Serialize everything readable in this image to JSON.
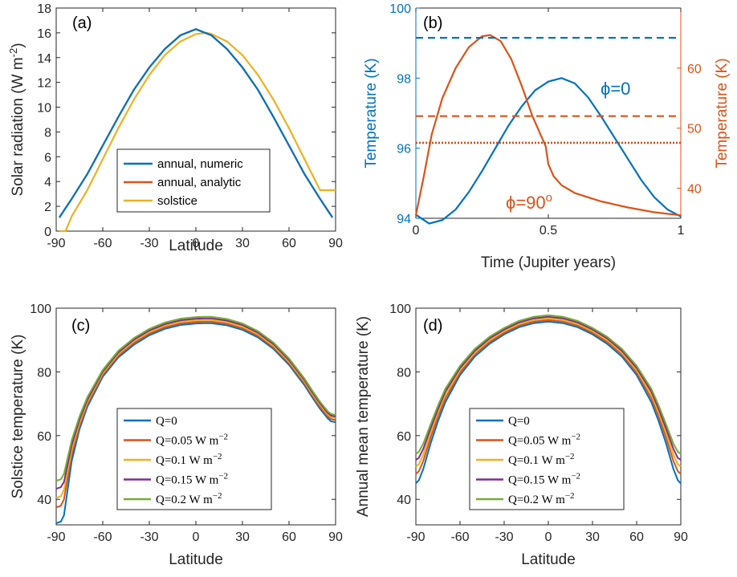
{
  "colors": {
    "blue": "#0072BD",
    "orange": "#D95319",
    "yellow": "#EDB120",
    "purple": "#7E2F8E",
    "green": "#77AC30"
  },
  "chart_data": [
    {
      "panel": "(a)",
      "type": "line",
      "xlabel": "Latitude",
      "ylabel": "Solar radiation (W m-2)",
      "ylabel_main": "Solar radiation (W m",
      "ylabel_sup": "-2",
      "ylabel_end": ")",
      "xlim": [
        -90,
        90
      ],
      "ylim": [
        0,
        18
      ],
      "xticks": [
        "-90",
        "-60",
        "-30",
        "0",
        "30",
        "60",
        "90"
      ],
      "yticks": [
        "0",
        "2",
        "4",
        "6",
        "8",
        "10",
        "12",
        "14",
        "16",
        "18"
      ],
      "legend": "lower-center",
      "series": [
        {
          "name": "annual, numeric",
          "color": "blue",
          "x": [
            -88,
            -80,
            -70,
            -60,
            -50,
            -40,
            -30,
            -20,
            -10,
            0,
            10,
            20,
            30,
            40,
            50,
            60,
            70,
            80,
            88
          ],
          "y": [
            1.1,
            2.6,
            4.6,
            6.9,
            9.2,
            11.4,
            13.2,
            14.7,
            15.8,
            16.3,
            15.8,
            14.7,
            13.2,
            11.4,
            9.2,
            6.9,
            4.6,
            2.6,
            1.1
          ]
        },
        {
          "name": "annual, analytic",
          "color": "orange",
          "x": [
            -88,
            -80,
            -70,
            -60,
            -50,
            -40,
            -30,
            -20,
            -10,
            0,
            10,
            20,
            30,
            40,
            50,
            60,
            70,
            80,
            88
          ],
          "y": [
            1.1,
            2.6,
            4.6,
            6.9,
            9.2,
            11.4,
            13.2,
            14.7,
            15.8,
            16.3,
            15.8,
            14.7,
            13.2,
            11.4,
            9.2,
            6.9,
            4.6,
            2.6,
            1.1
          ]
        },
        {
          "name": "solstice",
          "color": "yellow",
          "x": [
            -88,
            -84,
            -80,
            -70,
            -60,
            -50,
            -40,
            -30,
            -20,
            -10,
            0,
            7,
            10,
            20,
            30,
            40,
            50,
            60,
            70,
            80,
            87,
            90
          ],
          "y": [
            0,
            0,
            1.2,
            3.3,
            5.8,
            8.3,
            10.6,
            12.6,
            14.2,
            15.3,
            15.9,
            16,
            15.9,
            15.3,
            14.2,
            12.6,
            10.6,
            8.3,
            5.8,
            3.3,
            3.3,
            3.3
          ]
        }
      ]
    },
    {
      "panel": "(b)",
      "type": "line",
      "xlabel": "Time (Jupiter years)",
      "ylabel_left": "Temperature (K)",
      "ylabel_right": "Temperature (K)",
      "xlim": [
        0,
        1
      ],
      "ylim_left": [
        94,
        100
      ],
      "ylim_right": [
        35,
        70
      ],
      "xticks": [
        "0",
        "0.5",
        "1"
      ],
      "yticks_left": [
        "94",
        "96",
        "98",
        "100"
      ],
      "yticks_right": [
        "40",
        "50",
        "60"
      ],
      "annotations": [
        {
          "text": "ϕ=0",
          "color": "blue"
        },
        {
          "text": "ϕ=90",
          "sup": "o",
          "color": "orange"
        }
      ],
      "series": [
        {
          "name": "ϕ=0",
          "axis": "left",
          "color": "blue",
          "x": [
            0,
            0.05,
            0.1,
            0.15,
            0.2,
            0.25,
            0.3,
            0.35,
            0.4,
            0.45,
            0.5,
            0.55,
            0.6,
            0.65,
            0.7,
            0.75,
            0.8,
            0.85,
            0.9,
            0.95,
            1.0
          ],
          "y": [
            94.1,
            93.85,
            93.95,
            94.25,
            94.75,
            95.35,
            96.0,
            96.65,
            97.2,
            97.65,
            97.9,
            98.0,
            97.85,
            97.45,
            96.9,
            96.3,
            95.7,
            95.1,
            94.6,
            94.25,
            94.05
          ]
        },
        {
          "name": "ϕ=90",
          "axis": "right",
          "color": "orange",
          "x": [
            0,
            0.03,
            0.06,
            0.1,
            0.15,
            0.2,
            0.25,
            0.28,
            0.32,
            0.36,
            0.4,
            0.44,
            0.47,
            0.49,
            0.5,
            0.52,
            0.55,
            0.6,
            0.7,
            0.8,
            0.9,
            1.0
          ],
          "y": [
            35.5,
            42,
            49,
            55,
            60,
            63.5,
            65.3,
            65.5,
            64.5,
            61.5,
            57,
            52,
            49,
            47,
            44,
            42,
            40.5,
            39.2,
            37.8,
            36.8,
            36,
            35.5
          ]
        },
        {
          "name": "ϕ=0 annual mean",
          "axis": "left",
          "color": "blue",
          "style": "dotted",
          "x": [
            0,
            1
          ],
          "y": [
            96.15,
            96.15
          ]
        },
        {
          "name": "ϕ=90 annual mean",
          "axis": "right",
          "color": "orange",
          "style": "dotted",
          "x": [
            0,
            1
          ],
          "y": [
            47.6,
            47.6
          ]
        },
        {
          "name": "ϕ=0 reference",
          "axis": "left",
          "color": "blue",
          "style": "dashed",
          "x": [
            0,
            1
          ],
          "y": [
            99.15,
            99.15
          ]
        },
        {
          "name": "ϕ=90 reference",
          "axis": "right",
          "color": "orange",
          "style": "dashed",
          "x": [
            0,
            1
          ],
          "y": [
            52,
            52
          ]
        }
      ]
    },
    {
      "panel": "(c)",
      "type": "line",
      "xlabel": "Latitude",
      "ylabel": "Solstice temperature (K)",
      "xlim": [
        -90,
        90
      ],
      "ylim": [
        32,
        100
      ],
      "xticks": [
        "-90",
        "-60",
        "-30",
        "0",
        "30",
        "60",
        "90"
      ],
      "yticks": [
        "40",
        "60",
        "80",
        "100"
      ],
      "legend": "lower-center",
      "series": [
        {
          "name": "Q=0",
          "color": "blue",
          "x": [
            -90,
            -87,
            -85,
            -80,
            -75,
            -70,
            -60,
            -50,
            -40,
            -30,
            -20,
            -10,
            0,
            7,
            10,
            20,
            30,
            40,
            50,
            60,
            70,
            75,
            80,
            85,
            87,
            90
          ],
          "y": [
            32.5,
            33,
            35,
            52,
            62,
            69,
            78.5,
            84.5,
            88.5,
            91.5,
            93.5,
            94.7,
            95.2,
            95.3,
            95.3,
            94.6,
            93.2,
            90.8,
            87.2,
            82.2,
            75.8,
            72,
            68.4,
            65.4,
            64.5,
            64.2
          ]
        },
        {
          "name": "Q=0.05 W m-2",
          "color": "orange",
          "x": [
            -90,
            -87,
            -85,
            -80,
            -75,
            -70,
            -60,
            -50,
            -40,
            -30,
            -20,
            -10,
            0,
            7,
            10,
            20,
            30,
            40,
            50,
            60,
            70,
            75,
            80,
            85,
            87,
            90
          ],
          "y": [
            37.5,
            38,
            40,
            54,
            63,
            69.8,
            79.1,
            85.1,
            89.1,
            92,
            94,
            95.2,
            95.7,
            95.8,
            95.8,
            95.1,
            93.7,
            91.3,
            87.7,
            82.7,
            76.4,
            72.6,
            69,
            66,
            65.2,
            64.9
          ]
        },
        {
          "name": "Q=0.1 W m-2",
          "color": "yellow",
          "x": [
            -90,
            -87,
            -85,
            -80,
            -75,
            -70,
            -60,
            -50,
            -40,
            -30,
            -20,
            -10,
            0,
            7,
            10,
            20,
            30,
            40,
            50,
            60,
            70,
            75,
            80,
            85,
            87,
            90
          ],
          "y": [
            40.5,
            41,
            43,
            55.5,
            64,
            70.5,
            79.6,
            85.6,
            89.6,
            92.5,
            94.5,
            95.7,
            96.2,
            96.3,
            96.3,
            95.6,
            94.2,
            91.8,
            88.2,
            83.2,
            76.9,
            73.1,
            69.6,
            66.6,
            65.8,
            65.5
          ]
        },
        {
          "name": "Q=0.15 W m-2",
          "color": "purple",
          "x": [
            -90,
            -87,
            -85,
            -80,
            -75,
            -70,
            -60,
            -50,
            -40,
            -30,
            -20,
            -10,
            0,
            7,
            10,
            20,
            30,
            40,
            50,
            60,
            70,
            75,
            80,
            85,
            87,
            90
          ],
          "y": [
            43.3,
            43.8,
            45.5,
            57,
            65,
            71.2,
            80.1,
            86.1,
            90.1,
            93,
            95,
            96.2,
            96.7,
            96.8,
            96.8,
            96.1,
            94.7,
            92.3,
            88.7,
            83.7,
            77.4,
            73.6,
            70.1,
            67.1,
            66.3,
            66
          ]
        },
        {
          "name": "Q=0.2 W m-2",
          "color": "green",
          "x": [
            -90,
            -87,
            -85,
            -80,
            -75,
            -70,
            -60,
            -50,
            -40,
            -30,
            -20,
            -10,
            0,
            7,
            10,
            20,
            30,
            40,
            50,
            60,
            70,
            75,
            80,
            85,
            87,
            90
          ],
          "y": [
            45.8,
            46.3,
            48,
            58.5,
            66,
            72,
            80.6,
            86.6,
            90.6,
            93.5,
            95.5,
            96.7,
            97.2,
            97.3,
            97.3,
            96.6,
            95.2,
            92.8,
            89.2,
            84.2,
            77.9,
            74.1,
            70.6,
            67.6,
            66.8,
            66.5
          ]
        }
      ]
    },
    {
      "panel": "(d)",
      "type": "line",
      "xlabel": "Latitude",
      "ylabel": "Annual mean temperature (K)",
      "xlim": [
        -90,
        90
      ],
      "ylim": [
        32,
        100
      ],
      "xticks": [
        "-90",
        "-60",
        "-30",
        "0",
        "30",
        "60",
        "90"
      ],
      "yticks": [
        "40",
        "60",
        "80",
        "100"
      ],
      "legend": "lower-center",
      "series": [
        {
          "name": "Q=0",
          "color": "blue",
          "x": [
            -90,
            -88,
            -85,
            -80,
            -75,
            -70,
            -60,
            -50,
            -40,
            -30,
            -20,
            -10,
            0,
            10,
            20,
            30,
            40,
            50,
            60,
            70,
            75,
            80,
            85,
            88,
            90
          ],
          "y": [
            45,
            46,
            49.5,
            57.5,
            64.5,
            70.5,
            79,
            84.8,
            88.8,
            91.8,
            94,
            95.3,
            95.8,
            95.3,
            94,
            91.8,
            88.8,
            84.8,
            79,
            70.5,
            64.5,
            57.5,
            49.5,
            46,
            45
          ]
        },
        {
          "name": "Q=0.05 W m-2",
          "color": "orange",
          "x": [
            -90,
            -88,
            -85,
            -80,
            -75,
            -70,
            -60,
            -50,
            -40,
            -30,
            -20,
            -10,
            0,
            10,
            20,
            30,
            40,
            50,
            60,
            70,
            75,
            80,
            85,
            88,
            90
          ],
          "y": [
            48,
            48.8,
            52,
            59.3,
            66,
            71.7,
            79.8,
            85.5,
            89.4,
            92.3,
            94.5,
            95.8,
            96.3,
            95.8,
            94.5,
            92.3,
            89.4,
            85.5,
            79.8,
            71.7,
            66,
            59.3,
            52,
            48.8,
            48
          ]
        },
        {
          "name": "Q=0.1 W m-2",
          "color": "yellow",
          "x": [
            -90,
            -88,
            -85,
            -80,
            -75,
            -70,
            -60,
            -50,
            -40,
            -30,
            -20,
            -10,
            0,
            10,
            20,
            30,
            40,
            50,
            60,
            70,
            75,
            80,
            85,
            88,
            90
          ],
          "y": [
            50.3,
            51,
            54,
            60.8,
            67.2,
            72.8,
            80.5,
            86,
            90,
            92.8,
            95,
            96.3,
            96.8,
            96.3,
            95,
            92.8,
            90,
            86,
            80.5,
            72.8,
            67.2,
            60.8,
            54,
            51,
            50.3
          ]
        },
        {
          "name": "Q=0.15 W m-2",
          "color": "purple",
          "x": [
            -90,
            -88,
            -85,
            -80,
            -75,
            -70,
            -60,
            -50,
            -40,
            -30,
            -20,
            -10,
            0,
            10,
            20,
            30,
            40,
            50,
            60,
            70,
            75,
            80,
            85,
            88,
            90
          ],
          "y": [
            52.4,
            53,
            55.8,
            62.2,
            68.3,
            73.8,
            81.2,
            86.6,
            90.5,
            93.3,
            95.5,
            96.8,
            97.3,
            96.8,
            95.5,
            93.3,
            90.5,
            86.6,
            81.2,
            73.8,
            68.3,
            62.2,
            55.8,
            53,
            52.4
          ]
        },
        {
          "name": "Q=0.2 W m-2",
          "color": "green",
          "x": [
            -90,
            -88,
            -85,
            -80,
            -75,
            -70,
            -60,
            -50,
            -40,
            -30,
            -20,
            -10,
            0,
            10,
            20,
            30,
            40,
            50,
            60,
            70,
            75,
            80,
            85,
            88,
            90
          ],
          "y": [
            54.3,
            54.9,
            57.5,
            63.5,
            69.4,
            74.7,
            81.9,
            87.2,
            91,
            93.8,
            96,
            97.3,
            97.8,
            97.3,
            96,
            93.8,
            91,
            87.2,
            81.9,
            74.7,
            69.4,
            63.5,
            57.5,
            54.9,
            54.3
          ]
        }
      ]
    }
  ]
}
